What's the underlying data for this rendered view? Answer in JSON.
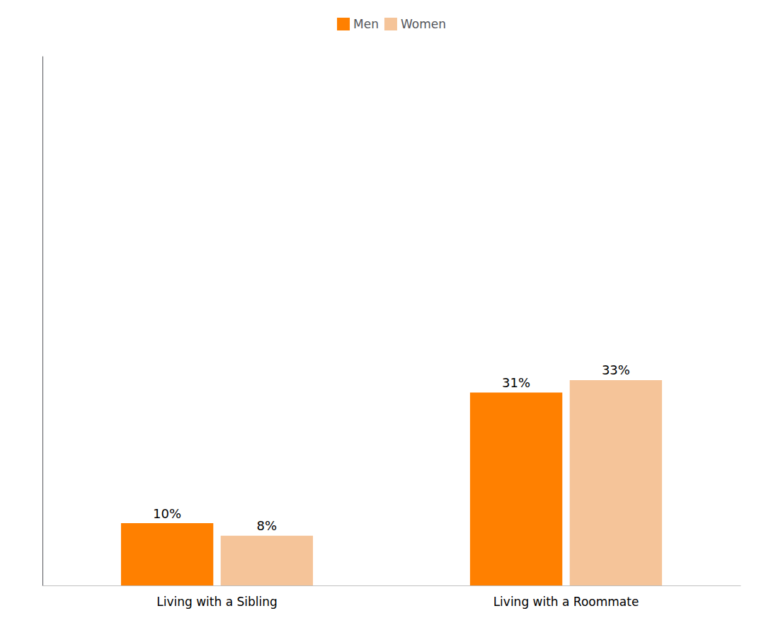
{
  "chart_data": {
    "type": "bar",
    "categories": [
      "Living with a Sibling",
      "Living with a Roommate"
    ],
    "series": [
      {
        "name": "Men",
        "color": "#FF8000",
        "values": [
          10,
          31
        ],
        "value_labels": [
          "10%",
          "31%"
        ]
      },
      {
        "name": "Women",
        "color": "#F5C499",
        "values": [
          8,
          33
        ],
        "value_labels": [
          "8%",
          "33%"
        ]
      }
    ],
    "ylim": [
      0,
      85
    ],
    "grid": false,
    "legend": "top",
    "data_labels": true,
    "tick_labels": "x"
  }
}
